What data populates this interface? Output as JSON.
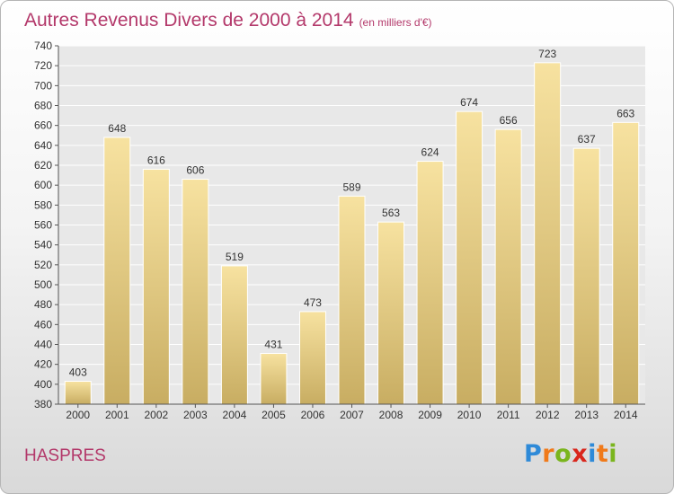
{
  "title": "Autres Revenus Divers de 2000 à 2014",
  "unit": "(en milliers d'€)",
  "commune": "HASPRES",
  "logo": {
    "text": "Proxiti",
    "letters": [
      {
        "char": "P",
        "color": "#2e8ad8"
      },
      {
        "char": "r",
        "color": "#f07a1a"
      },
      {
        "char": "o",
        "color": "#7ab51d"
      },
      {
        "char": "x",
        "color": "#d9261c"
      },
      {
        "char": "i",
        "color": "#2e8ad8"
      },
      {
        "char": "t",
        "color": "#f07a1a"
      },
      {
        "char": "i",
        "color": "#7ab51d"
      }
    ]
  },
  "colors": {
    "title": "#b3386a",
    "bar_top": "#f7e2a0",
    "bar_bottom": "#c8ad62",
    "grid": "#ffffff",
    "plot_bg": "#e8e8e8",
    "text": "#333333"
  },
  "chart_data": {
    "type": "bar",
    "categories": [
      "2000",
      "2001",
      "2002",
      "2003",
      "2004",
      "2005",
      "2006",
      "2007",
      "2008",
      "2009",
      "2010",
      "2011",
      "2012",
      "2013",
      "2014"
    ],
    "values": [
      403,
      648,
      616,
      606,
      519,
      431,
      473,
      589,
      563,
      624,
      674,
      656,
      723,
      637,
      663
    ],
    "title": "Autres Revenus Divers de 2000 à 2014",
    "xlabel": "",
    "ylabel": "",
    "ylim": [
      380,
      740
    ],
    "ytick_step": 20,
    "grid": true,
    "data_labels": true
  }
}
